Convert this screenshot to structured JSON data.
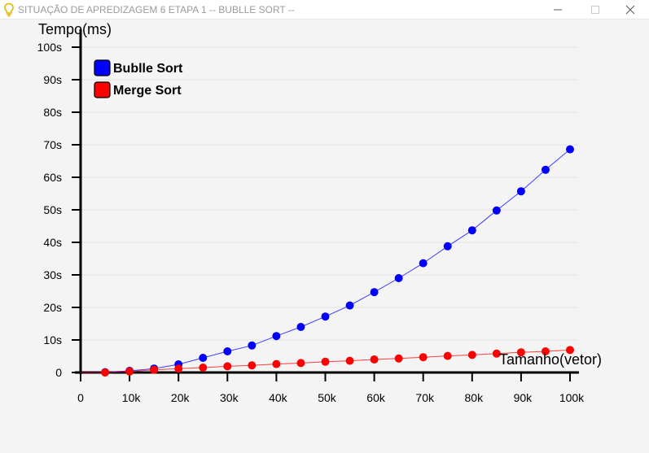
{
  "window": {
    "title": "SITUAÇÃO DE APREDIZAGEM 6 ETAPA 1 -- BUBLLE SORT --",
    "icon": "lightbulb-icon",
    "controls": [
      "minimize-icon",
      "maximize-icon",
      "close-icon"
    ]
  },
  "chart_data": {
    "type": "line",
    "title": "",
    "xlabel": "Tamanho(vetor)",
    "ylabel": "Tempo(ms)",
    "xlim": [
      0,
      100000
    ],
    "ylim": [
      0,
      100
    ],
    "x_ticks": [
      {
        "value": 0,
        "label": "0"
      },
      {
        "value": 10000,
        "label": "10k"
      },
      {
        "value": 20000,
        "label": "20k"
      },
      {
        "value": 30000,
        "label": "30k"
      },
      {
        "value": 40000,
        "label": "40k"
      },
      {
        "value": 50000,
        "label": "50k"
      },
      {
        "value": 60000,
        "label": "60k"
      },
      {
        "value": 70000,
        "label": "70k"
      },
      {
        "value": 80000,
        "label": "80k"
      },
      {
        "value": 90000,
        "label": "90k"
      },
      {
        "value": 100000,
        "label": "100k"
      }
    ],
    "y_ticks": [
      {
        "value": 0,
        "label": "0"
      },
      {
        "value": 10,
        "label": "10s"
      },
      {
        "value": 20,
        "label": "20s"
      },
      {
        "value": 30,
        "label": "30s"
      },
      {
        "value": 40,
        "label": "40s"
      },
      {
        "value": 50,
        "label": "50s"
      },
      {
        "value": 60,
        "label": "60s"
      },
      {
        "value": 70,
        "label": "70s"
      },
      {
        "value": 80,
        "label": "80s"
      },
      {
        "value": 90,
        "label": "90s"
      },
      {
        "value": 100,
        "label": "100s"
      }
    ],
    "grid": true,
    "legend_position": "top-left",
    "x": [
      5000,
      10000,
      15000,
      20000,
      25000,
      30000,
      35000,
      40000,
      45000,
      50000,
      55000,
      60000,
      65000,
      70000,
      75000,
      80000,
      85000,
      90000,
      95000,
      100000
    ],
    "series": [
      {
        "name": "Bublle Sort",
        "color": "#0000ff",
        "values": [
          0.1,
          0.5,
          1.2,
          2.5,
          4.5,
          6.5,
          8.3,
          11.2,
          14.0,
          17.2,
          20.6,
          24.7,
          29.0,
          33.6,
          38.8,
          43.7,
          49.8,
          55.7,
          62.3,
          68.6
        ]
      },
      {
        "name": "Merge Sort",
        "color": "#ff0000",
        "values": [
          0.0,
          0.3,
          0.8,
          1.2,
          1.5,
          1.9,
          2.2,
          2.6,
          2.9,
          3.3,
          3.6,
          4.0,
          4.3,
          4.7,
          5.1,
          5.4,
          5.8,
          6.2,
          6.5,
          6.9
        ]
      }
    ]
  }
}
